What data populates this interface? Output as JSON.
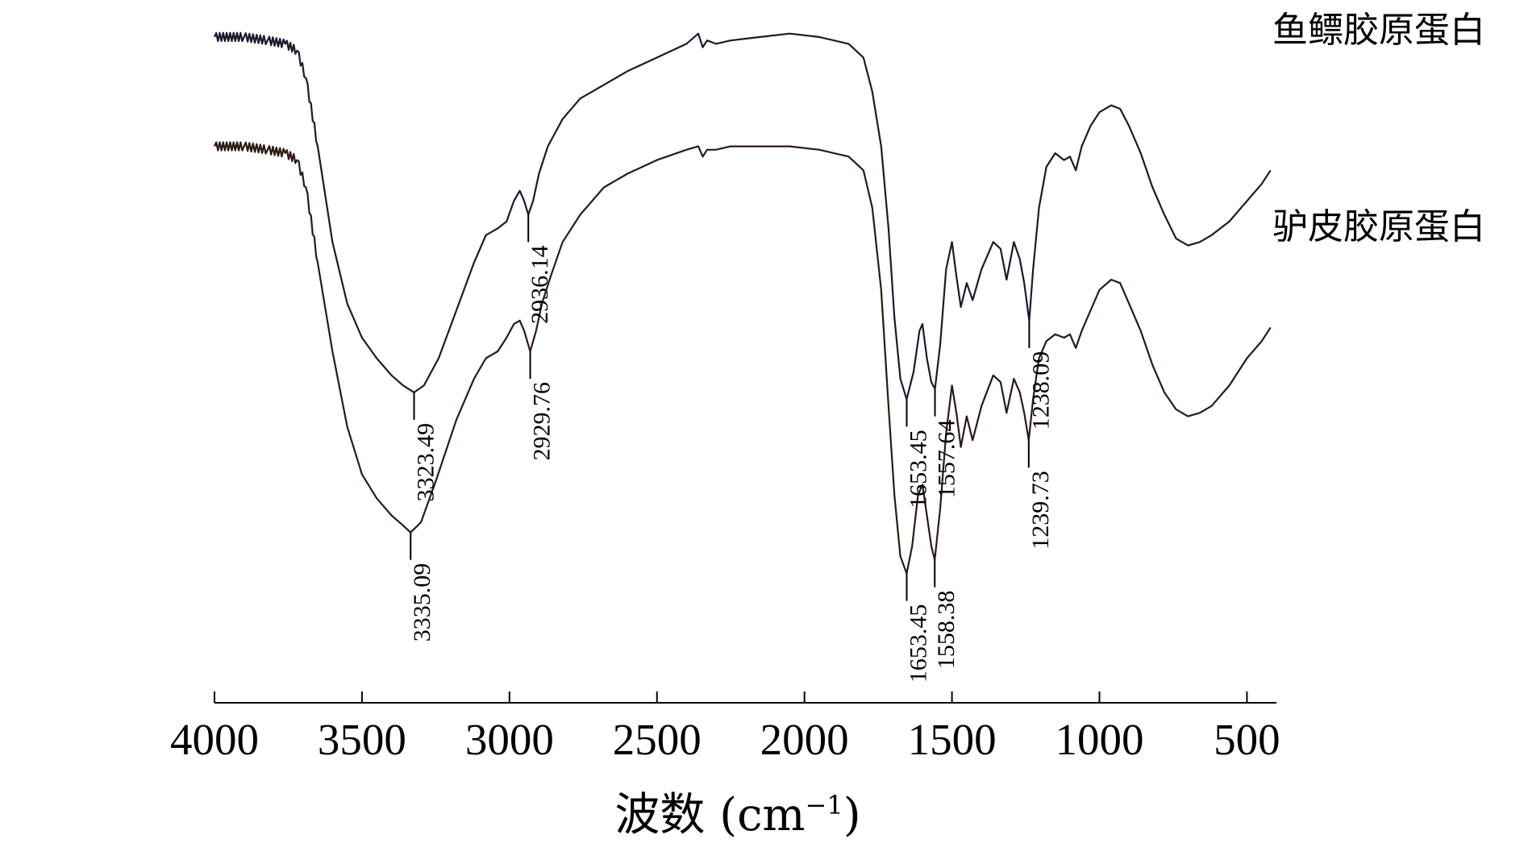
{
  "chart_data": {
    "type": "line",
    "xlabel": "波数 (cm",
    "xlabel_sup": "−1",
    "xlabel_close": ")",
    "xlim": [
      4000,
      400
    ],
    "x_reversed": true,
    "xticks": [
      4000,
      3500,
      3000,
      2500,
      2000,
      1500,
      1000,
      500
    ],
    "xtick_labels": [
      "4000",
      "3500",
      "3000",
      "2500",
      "2000",
      "1500",
      "1000",
      "500"
    ],
    "y_axis_shown": false,
    "grid": false,
    "y_units": "transmittance (relative, stacked)",
    "series": [
      {
        "name": "鱼鳔胶原蛋白",
        "color": "#1a1a2e",
        "points": [
          [
            4000,
            0.96
          ],
          [
            3900,
            0.96
          ],
          [
            3820,
            0.955
          ],
          [
            3760,
            0.95
          ],
          [
            3720,
            0.94
          ],
          [
            3690,
            0.9
          ],
          [
            3650,
            0.8
          ],
          [
            3600,
            0.66
          ],
          [
            3550,
            0.57
          ],
          [
            3500,
            0.52
          ],
          [
            3450,
            0.49
          ],
          [
            3400,
            0.465
          ],
          [
            3360,
            0.45
          ],
          [
            3323.49,
            0.44
          ],
          [
            3290,
            0.45
          ],
          [
            3240,
            0.49
          ],
          [
            3180,
            0.56
          ],
          [
            3120,
            0.63
          ],
          [
            3080,
            0.67
          ],
          [
            3040,
            0.68
          ],
          [
            3010,
            0.69
          ],
          [
            2985,
            0.72
          ],
          [
            2965,
            0.735
          ],
          [
            2950,
            0.72
          ],
          [
            2936.14,
            0.7
          ],
          [
            2920,
            0.72
          ],
          [
            2900,
            0.76
          ],
          [
            2870,
            0.8
          ],
          [
            2820,
            0.84
          ],
          [
            2760,
            0.87
          ],
          [
            2680,
            0.89
          ],
          [
            2600,
            0.91
          ],
          [
            2500,
            0.93
          ],
          [
            2400,
            0.95
          ],
          [
            2360,
            0.965
          ],
          [
            2345,
            0.945
          ],
          [
            2330,
            0.955
          ],
          [
            2300,
            0.95
          ],
          [
            2250,
            0.955
          ],
          [
            2150,
            0.96
          ],
          [
            2050,
            0.965
          ],
          [
            1950,
            0.96
          ],
          [
            1850,
            0.95
          ],
          [
            1800,
            0.93
          ],
          [
            1770,
            0.88
          ],
          [
            1740,
            0.8
          ],
          [
            1715,
            0.68
          ],
          [
            1695,
            0.55
          ],
          [
            1675,
            0.46
          ],
          [
            1653.45,
            0.43
          ],
          [
            1630,
            0.47
          ],
          [
            1610,
            0.53
          ],
          [
            1600,
            0.54
          ],
          [
            1585,
            0.49
          ],
          [
            1570,
            0.455
          ],
          [
            1557.64,
            0.445
          ],
          [
            1540,
            0.51
          ],
          [
            1520,
            0.62
          ],
          [
            1500,
            0.66
          ],
          [
            1485,
            0.61
          ],
          [
            1470,
            0.565
          ],
          [
            1450,
            0.6
          ],
          [
            1430,
            0.575
          ],
          [
            1400,
            0.62
          ],
          [
            1360,
            0.66
          ],
          [
            1335,
            0.65
          ],
          [
            1315,
            0.605
          ],
          [
            1290,
            0.66
          ],
          [
            1270,
            0.635
          ],
          [
            1255,
            0.6
          ],
          [
            1238.09,
            0.545
          ],
          [
            1225,
            0.62
          ],
          [
            1205,
            0.71
          ],
          [
            1180,
            0.77
          ],
          [
            1150,
            0.79
          ],
          [
            1120,
            0.78
          ],
          [
            1100,
            0.785
          ],
          [
            1080,
            0.765
          ],
          [
            1060,
            0.8
          ],
          [
            1030,
            0.83
          ],
          [
            1000,
            0.85
          ],
          [
            960,
            0.86
          ],
          [
            930,
            0.855
          ],
          [
            900,
            0.83
          ],
          [
            860,
            0.79
          ],
          [
            820,
            0.74
          ],
          [
            780,
            0.7
          ],
          [
            740,
            0.665
          ],
          [
            700,
            0.655
          ],
          [
            660,
            0.66
          ],
          [
            620,
            0.67
          ],
          [
            560,
            0.69
          ],
          [
            500,
            0.72
          ],
          [
            450,
            0.745
          ],
          [
            420,
            0.765
          ]
        ],
        "label_text": "鱼鳔胶原蛋白"
      },
      {
        "name": "驴皮胶原蛋白",
        "color": "#2b1a14",
        "points": [
          [
            4000,
            0.8
          ],
          [
            3900,
            0.8
          ],
          [
            3820,
            0.795
          ],
          [
            3760,
            0.79
          ],
          [
            3720,
            0.78
          ],
          [
            3690,
            0.74
          ],
          [
            3650,
            0.63
          ],
          [
            3600,
            0.5
          ],
          [
            3550,
            0.39
          ],
          [
            3500,
            0.32
          ],
          [
            3450,
            0.285
          ],
          [
            3400,
            0.26
          ],
          [
            3360,
            0.245
          ],
          [
            3335.09,
            0.235
          ],
          [
            3300,
            0.25
          ],
          [
            3250,
            0.31
          ],
          [
            3180,
            0.4
          ],
          [
            3120,
            0.46
          ],
          [
            3080,
            0.49
          ],
          [
            3040,
            0.5
          ],
          [
            3010,
            0.52
          ],
          [
            2985,
            0.54
          ],
          [
            2965,
            0.545
          ],
          [
            2950,
            0.53
          ],
          [
            2929.76,
            0.5
          ],
          [
            2910,
            0.53
          ],
          [
            2890,
            0.57
          ],
          [
            2860,
            0.61
          ],
          [
            2820,
            0.66
          ],
          [
            2760,
            0.7
          ],
          [
            2680,
            0.74
          ],
          [
            2600,
            0.76
          ],
          [
            2500,
            0.78
          ],
          [
            2400,
            0.795
          ],
          [
            2360,
            0.8
          ],
          [
            2345,
            0.785
          ],
          [
            2330,
            0.795
          ],
          [
            2300,
            0.795
          ],
          [
            2250,
            0.8
          ],
          [
            2150,
            0.8
          ],
          [
            2050,
            0.8
          ],
          [
            1950,
            0.795
          ],
          [
            1850,
            0.785
          ],
          [
            1800,
            0.765
          ],
          [
            1770,
            0.71
          ],
          [
            1740,
            0.59
          ],
          [
            1715,
            0.42
          ],
          [
            1695,
            0.29
          ],
          [
            1675,
            0.2
          ],
          [
            1653.45,
            0.175
          ],
          [
            1635,
            0.215
          ],
          [
            1615,
            0.29
          ],
          [
            1600,
            0.305
          ],
          [
            1585,
            0.26
          ],
          [
            1570,
            0.215
          ],
          [
            1558.38,
            0.195
          ],
          [
            1540,
            0.27
          ],
          [
            1520,
            0.38
          ],
          [
            1500,
            0.45
          ],
          [
            1485,
            0.41
          ],
          [
            1470,
            0.36
          ],
          [
            1450,
            0.405
          ],
          [
            1430,
            0.37
          ],
          [
            1400,
            0.42
          ],
          [
            1360,
            0.465
          ],
          [
            1335,
            0.455
          ],
          [
            1315,
            0.41
          ],
          [
            1290,
            0.46
          ],
          [
            1270,
            0.44
          ],
          [
            1255,
            0.41
          ],
          [
            1239.73,
            0.37
          ],
          [
            1225,
            0.43
          ],
          [
            1205,
            0.49
          ],
          [
            1180,
            0.515
          ],
          [
            1150,
            0.525
          ],
          [
            1120,
            0.52
          ],
          [
            1100,
            0.525
          ],
          [
            1080,
            0.505
          ],
          [
            1060,
            0.53
          ],
          [
            1030,
            0.56
          ],
          [
            1000,
            0.59
          ],
          [
            960,
            0.605
          ],
          [
            930,
            0.6
          ],
          [
            900,
            0.57
          ],
          [
            860,
            0.53
          ],
          [
            820,
            0.48
          ],
          [
            780,
            0.44
          ],
          [
            740,
            0.415
          ],
          [
            700,
            0.405
          ],
          [
            660,
            0.41
          ],
          [
            620,
            0.42
          ],
          [
            560,
            0.45
          ],
          [
            500,
            0.49
          ],
          [
            450,
            0.515
          ],
          [
            420,
            0.535
          ]
        ],
        "label_text": "驴皮胶原蛋白"
      }
    ],
    "annotations": [
      {
        "series": 0,
        "x": 3323.49,
        "label": "3323.49"
      },
      {
        "series": 0,
        "x": 2936.14,
        "label": "2936.14"
      },
      {
        "series": 0,
        "x": 1653.45,
        "label": "1653.45"
      },
      {
        "series": 0,
        "x": 1557.64,
        "label": "1557.64"
      },
      {
        "series": 0,
        "x": 1238.09,
        "label": "1238.09"
      },
      {
        "series": 1,
        "x": 3335.09,
        "label": "3335.09"
      },
      {
        "series": 1,
        "x": 2929.76,
        "label": "2929.76"
      },
      {
        "series": 1,
        "x": 1653.45,
        "label": "1653.45"
      },
      {
        "series": 1,
        "x": 1558.38,
        "label": "1558.38"
      },
      {
        "series": 1,
        "x": 1239.73,
        "label": "1239.73"
      }
    ]
  }
}
